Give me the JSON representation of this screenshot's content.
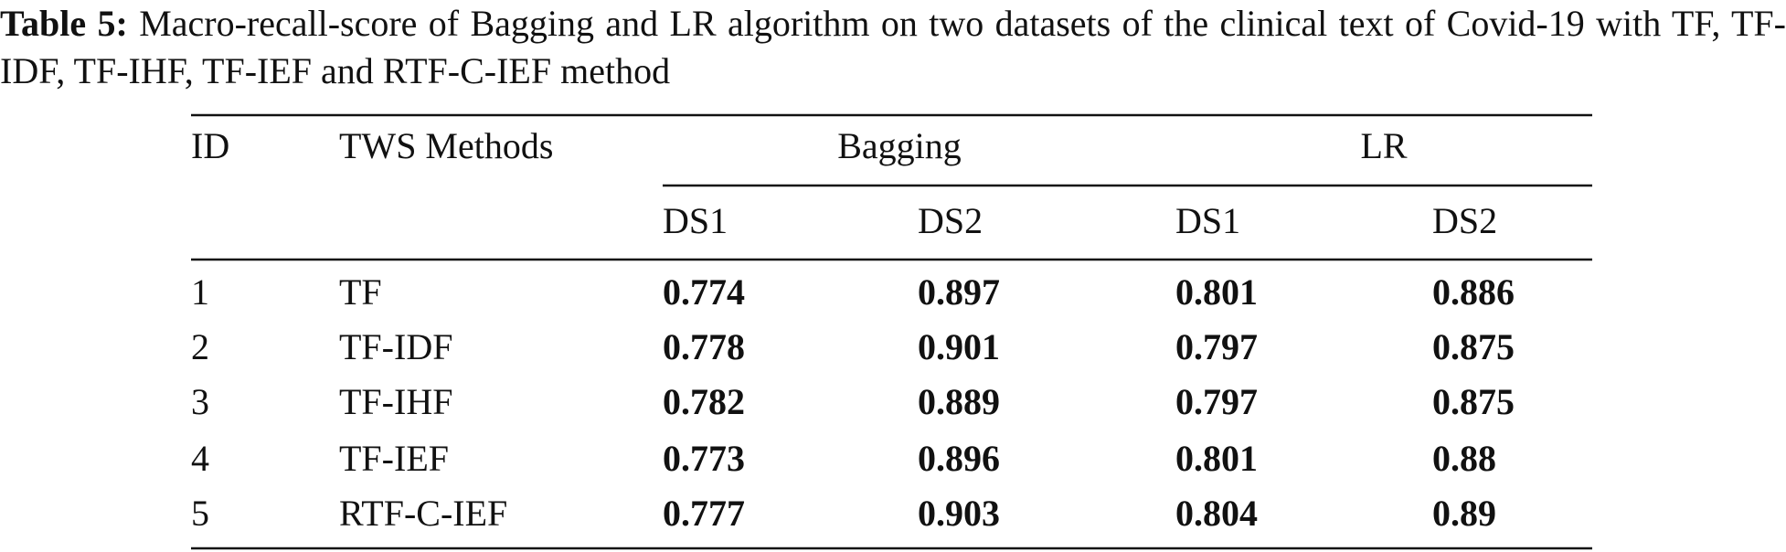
{
  "caption": {
    "label": "Table 5:",
    "text": "Macro-recall-score of Bagging and LR algorithm on two datasets of the clinical text of Covid-19 with TF, TF-IDF, TF-IHF, TF-IEF and RTF-C-IEF method"
  },
  "table": {
    "header": {
      "id": "ID",
      "method": "TWS Methods",
      "groups": [
        "Bagging",
        "LR"
      ],
      "subcolumns": [
        "DS1",
        "DS2",
        "DS1",
        "DS2"
      ]
    },
    "rows": [
      [
        "1",
        "TF",
        "0.774",
        "0.897",
        "0.801",
        "0.886"
      ],
      [
        "2",
        "TF-IDF",
        "0.778",
        "0.901",
        "0.797",
        "0.875"
      ],
      [
        "3",
        "TF-IHF",
        "0.782",
        "0.889",
        "0.797",
        "0.875"
      ],
      [
        "4",
        "TF-IEF",
        "0.773",
        "0.896",
        "0.801",
        "0.88"
      ],
      [
        "5",
        "RTF-C-IEF",
        "0.777",
        "0.903",
        "0.804",
        "0.89"
      ]
    ]
  }
}
